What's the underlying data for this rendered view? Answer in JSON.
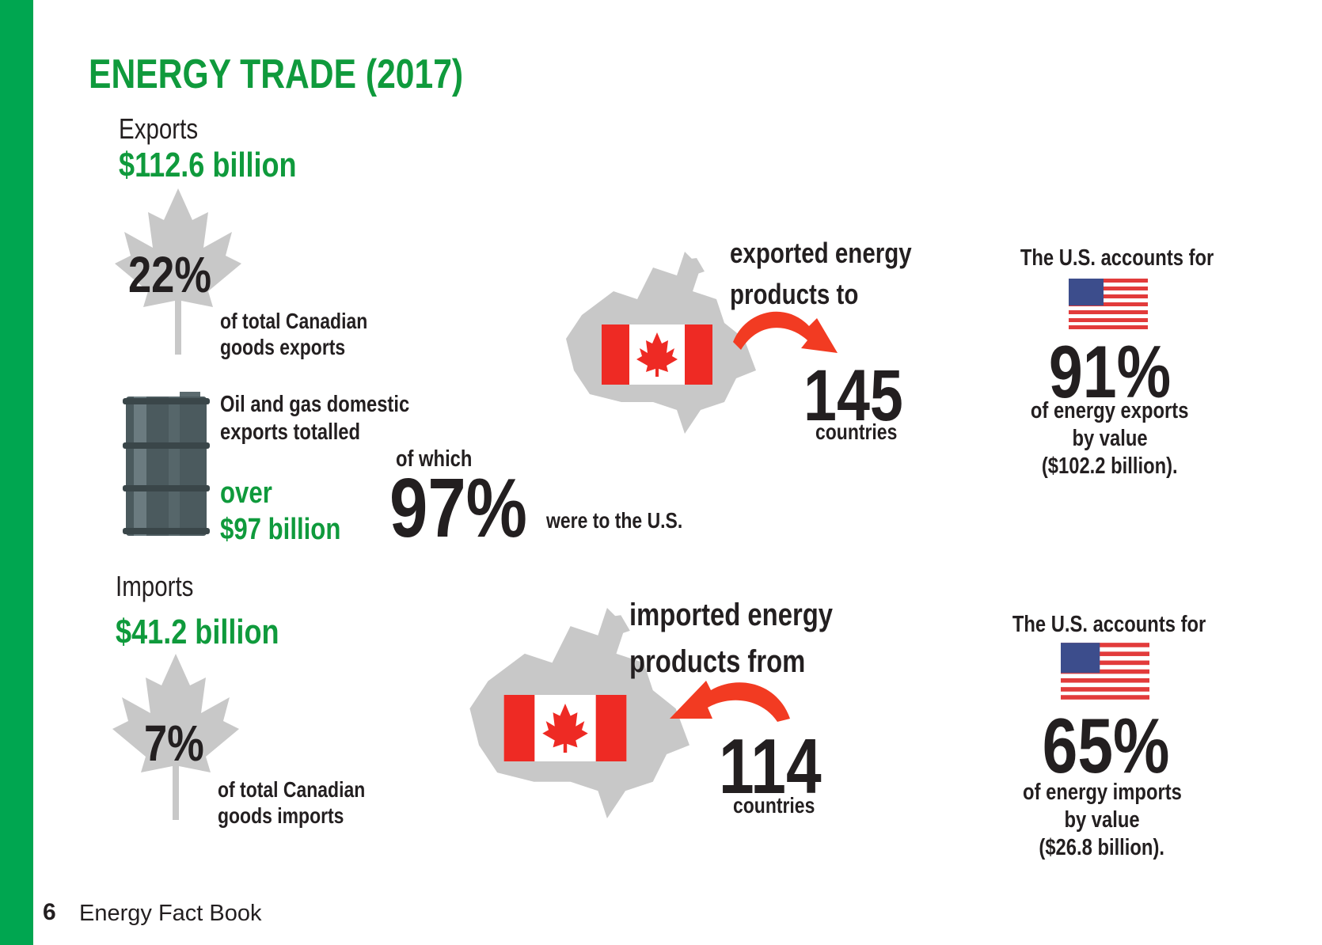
{
  "colors": {
    "brand_green": "#0f9a3c",
    "sidebar_green": "#00a650",
    "leaf_gray": "#c8c8c8",
    "arrow_red": "#f23b22",
    "flag_red": "#ee2a24"
  },
  "title": "ENERGY TRADE (2017)",
  "exports": {
    "label": "Exports",
    "total": "$112.6 billion",
    "share_pct": "22%",
    "share_line1": "of total Canadian",
    "share_line2": "goods exports",
    "oil_line1": "Oil and gas domestic",
    "oil_line2": "exports totalled",
    "oil_over": "over",
    "oil_amount": "$97 billion",
    "of_which": "of which",
    "us_pct": "97%",
    "us_text": "were to the U.S.",
    "dest_line1": "exported energy",
    "dest_line2": "products to",
    "countries_num": "145",
    "countries_label": "countries",
    "us_accounts": "The U.S. accounts for",
    "us_share": "91%",
    "us_share_line1": "of energy exports",
    "us_share_line2": "by value",
    "us_share_line3": "($102.2 billion)."
  },
  "imports": {
    "label": "Imports",
    "total": "$41.2 billion",
    "share_pct": "7%",
    "share_line1": "of total Canadian",
    "share_line2": "goods imports",
    "src_line1": "imported energy",
    "src_line2": "products from",
    "countries_num": "114",
    "countries_label": "countries",
    "us_accounts": "The U.S. accounts for",
    "us_share": "65%",
    "us_share_line1": "of energy imports",
    "us_share_line2": "by value",
    "us_share_line3": "($26.8 billion)."
  },
  "footer": {
    "page_number": "6",
    "book_title": "Energy Fact Book"
  },
  "icons": [
    "maple-leaf-icon",
    "oil-barrel-icon",
    "canada-map-icon",
    "canada-flag-icon",
    "us-flag-icon",
    "curved-arrow-icon"
  ]
}
